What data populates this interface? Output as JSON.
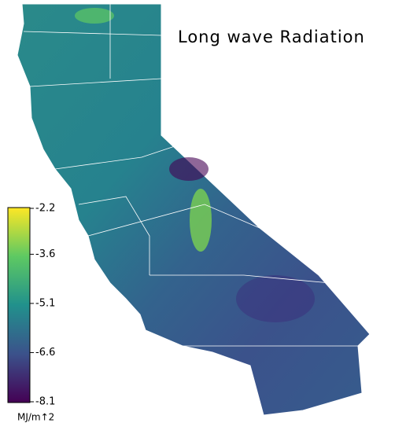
{
  "title": "Long wave Radiation",
  "colorbar": {
    "lim": [
      -8.1,
      -2.2
    ],
    "ticks": [
      -2.2,
      -3.6,
      -5.1,
      -6.6,
      -8.1
    ],
    "label": "MJ/m↑2",
    "colors": [
      "#440154",
      "#3b528b",
      "#21918c",
      "#5ec962",
      "#fde725"
    ]
  }
}
